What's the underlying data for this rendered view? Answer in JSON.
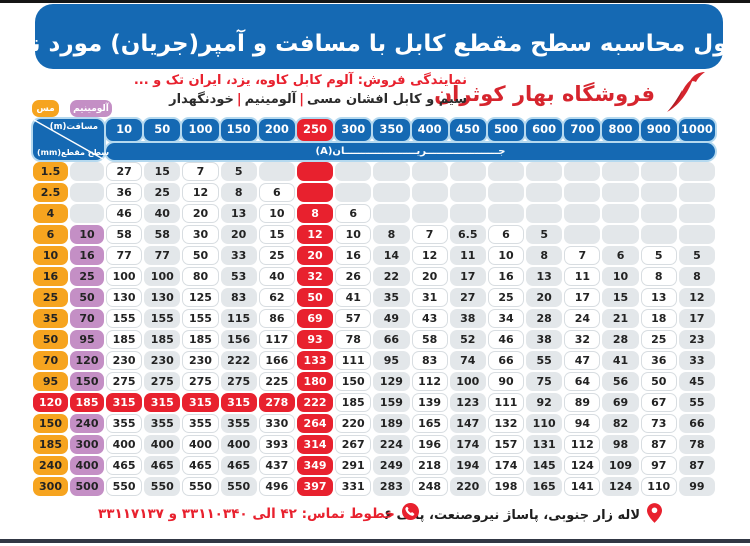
{
  "poster": {
    "title": "جدول محاسبه سطح مقطع کابل با مسافت و آمپر(جریان) مورد نیاز",
    "dealer_line": "نمایندگی فروش: آلوم کابل کاوه، یزد، ایران تک و ...",
    "products": {
      "p1": "سیم و کابل افشان مسی",
      "sep": "|",
      "p2": "آلومینیم",
      "p3": "خودنگهدار"
    },
    "store_name": "فروشگاه بهار کوثران",
    "footer": {
      "address": "لاله زار جنوبی، پاساژ نیروصنعت، پلاک ۶",
      "phones": "خطوط تماس: ۴۲ الی ۳۳۱۱۰۳۴۰ و ۳۳۱۱۷۱۳۷"
    }
  },
  "legend": {
    "copper": "مس",
    "aluminum": "آلومینیم"
  },
  "table_header": {
    "distance_label": "مسافت(m)",
    "section_label": "سطح مقطع(mm)",
    "current_label": "جـــــــــــــــــــــریـــــــــــــــــــــان(A)"
  },
  "chart_data": {
    "type": "table",
    "title": "جدول محاسبه سطح مقطع کابل با مسافت و آمپر(جریان) مورد نیاز",
    "columns_distance_m": [
      10,
      50,
      100,
      150,
      200,
      250,
      300,
      350,
      400,
      450,
      500,
      600,
      700,
      800,
      900,
      1000
    ],
    "row_label_copper_mm2": "مس",
    "row_label_aluminum_mm2": "آلومینیم",
    "cell_values_are": "جریان(A)",
    "highlight_column": 250,
    "highlight_row_copper": "120",
    "rows": [
      {
        "copper_mm2": "1.5",
        "aluminum_mm2": "",
        "amps": [
          "27",
          "15",
          "7",
          "5",
          "",
          "",
          "",
          "",
          "",
          "",
          "",
          "",
          "",
          "",
          "",
          ""
        ]
      },
      {
        "copper_mm2": "2.5",
        "aluminum_mm2": "",
        "amps": [
          "36",
          "25",
          "12",
          "8",
          "6",
          "",
          "",
          "",
          "",
          "",
          "",
          "",
          "",
          "",
          "",
          ""
        ]
      },
      {
        "copper_mm2": "4",
        "aluminum_mm2": "",
        "amps": [
          "46",
          "40",
          "20",
          "13",
          "10",
          "8",
          "6",
          "",
          "",
          "",
          "",
          "",
          "",
          "",
          "",
          ""
        ]
      },
      {
        "copper_mm2": "6",
        "aluminum_mm2": "10",
        "amps": [
          "58",
          "58",
          "30",
          "20",
          "15",
          "12",
          "10",
          "8",
          "7",
          "6.5",
          "6",
          "5",
          "",
          "",
          "",
          ""
        ]
      },
      {
        "copper_mm2": "10",
        "aluminum_mm2": "16",
        "amps": [
          "77",
          "77",
          "50",
          "33",
          "25",
          "20",
          "16",
          "14",
          "12",
          "11",
          "10",
          "8",
          "7",
          "6",
          "5",
          "5"
        ]
      },
      {
        "copper_mm2": "16",
        "aluminum_mm2": "25",
        "amps": [
          "100",
          "100",
          "80",
          "53",
          "40",
          "32",
          "26",
          "22",
          "20",
          "17",
          "16",
          "13",
          "11",
          "10",
          "8",
          "8"
        ]
      },
      {
        "copper_mm2": "25",
        "aluminum_mm2": "50",
        "amps": [
          "130",
          "130",
          "125",
          "83",
          "62",
          "50",
          "41",
          "35",
          "31",
          "27",
          "25",
          "20",
          "17",
          "15",
          "13",
          "12"
        ]
      },
      {
        "copper_mm2": "35",
        "aluminum_mm2": "70",
        "amps": [
          "155",
          "155",
          "155",
          "115",
          "86",
          "69",
          "57",
          "49",
          "43",
          "38",
          "34",
          "28",
          "24",
          "21",
          "18",
          "17"
        ]
      },
      {
        "copper_mm2": "50",
        "aluminum_mm2": "95",
        "amps": [
          "185",
          "185",
          "185",
          "156",
          "117",
          "93",
          "78",
          "66",
          "58",
          "52",
          "46",
          "38",
          "32",
          "28",
          "25",
          "23"
        ]
      },
      {
        "copper_mm2": "70",
        "aluminum_mm2": "120",
        "amps": [
          "230",
          "230",
          "230",
          "222",
          "166",
          "133",
          "111",
          "95",
          "83",
          "74",
          "66",
          "55",
          "47",
          "41",
          "36",
          "33"
        ]
      },
      {
        "copper_mm2": "95",
        "aluminum_mm2": "150",
        "amps": [
          "275",
          "275",
          "275",
          "275",
          "225",
          "180",
          "150",
          "129",
          "112",
          "100",
          "90",
          "75",
          "64",
          "56",
          "50",
          "45"
        ]
      },
      {
        "copper_mm2": "120",
        "aluminum_mm2": "185",
        "amps": [
          "315",
          "315",
          "315",
          "315",
          "278",
          "222",
          "185",
          "159",
          "139",
          "123",
          "111",
          "92",
          "89",
          "69",
          "67",
          "55"
        ]
      },
      {
        "copper_mm2": "150",
        "aluminum_mm2": "240",
        "amps": [
          "355",
          "355",
          "355",
          "355",
          "330",
          "264",
          "220",
          "189",
          "165",
          "147",
          "132",
          "110",
          "94",
          "82",
          "73",
          "66"
        ]
      },
      {
        "copper_mm2": "185",
        "aluminum_mm2": "300",
        "amps": [
          "400",
          "400",
          "400",
          "400",
          "393",
          "314",
          "267",
          "224",
          "196",
          "174",
          "157",
          "131",
          "112",
          "98",
          "87",
          "78"
        ]
      },
      {
        "copper_mm2": "240",
        "aluminum_mm2": "400",
        "amps": [
          "465",
          "465",
          "465",
          "465",
          "437",
          "349",
          "291",
          "249",
          "218",
          "194",
          "174",
          "145",
          "124",
          "109",
          "97",
          "87"
        ]
      },
      {
        "copper_mm2": "300",
        "aluminum_mm2": "500",
        "amps": [
          "550",
          "550",
          "550",
          "550",
          "496",
          "397",
          "331",
          "283",
          "248",
          "220",
          "198",
          "165",
          "141",
          "124",
          "110",
          "99"
        ]
      }
    ]
  },
  "colors": {
    "blue": "#1569b3",
    "red": "#e8212e",
    "orange_copper": "#f6a41f",
    "purple_aluminum": "#c48fc5",
    "empty_cell_gray": "#e3e7ea",
    "store_red": "#d6252e"
  }
}
